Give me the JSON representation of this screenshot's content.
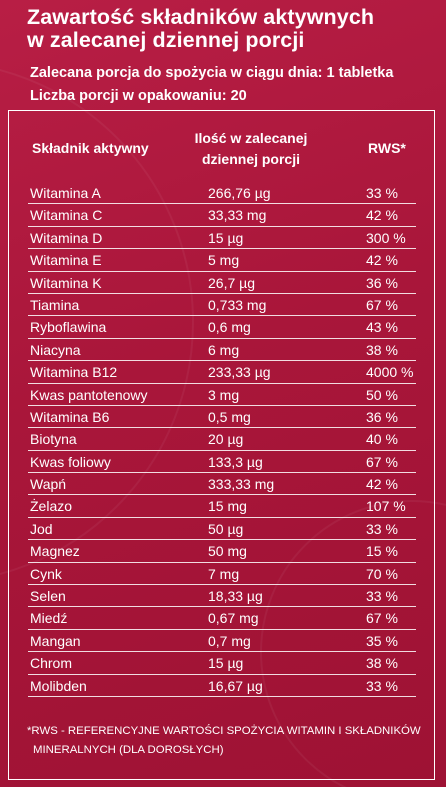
{
  "title_line1": "Zawartość składników aktywnych",
  "title_line2": "w zalecanej dziennej porcji",
  "serving": "Zalecana porcja do spożycia w ciągu dnia: 1 tabletka",
  "servings_per_pack": "Liczba porcji w opakowaniu: 20",
  "columns": {
    "ingredient": "Składnik aktywny",
    "amount_line1": "Ilość w zalecanej",
    "amount_line2": "dziennej porcji",
    "rws": "RWS*"
  },
  "rows": [
    {
      "name": "Witamina A",
      "amount": "266,76 µg",
      "rws": "33 %"
    },
    {
      "name": "Witamina C",
      "amount": "33,33 mg",
      "rws": "42 %"
    },
    {
      "name": "Witamina D",
      "amount": "15 µg",
      "rws": "300 %"
    },
    {
      "name": "Witamina E",
      "amount": "5 mg",
      "rws": "42 %"
    },
    {
      "name": "Witamina K",
      "amount": "26,7 µg",
      "rws": "36 %"
    },
    {
      "name": "Tiamina",
      "amount": "0,733 mg",
      "rws": "67 %"
    },
    {
      "name": "Ryboflawina",
      "amount": "0,6 mg",
      "rws": "43 %"
    },
    {
      "name": "Niacyna",
      "amount": "6 mg",
      "rws": "38 %"
    },
    {
      "name": "Witamina B12",
      "amount": "233,33 µg",
      "rws": "4000 %"
    },
    {
      "name": "Kwas pantotenowy",
      "amount": "3 mg",
      "rws": "50 %"
    },
    {
      "name": "Witamina B6",
      "amount": "0,5 mg",
      "rws": "36 %"
    },
    {
      "name": "Biotyna",
      "amount": "20 µg",
      "rws": "40 %"
    },
    {
      "name": "Kwas foliowy",
      "amount": "133,3 µg",
      "rws": "67 %"
    },
    {
      "name": "Wapń",
      "amount": "333,33 mg",
      "rws": "42 %"
    },
    {
      "name": "Żelazo",
      "amount": "15 mg",
      "rws": "107 %"
    },
    {
      "name": "Jod",
      "amount": "50 µg",
      "rws": "33 %"
    },
    {
      "name": "Magnez",
      "amount": "50 mg",
      "rws": "15 %"
    },
    {
      "name": "Cynk",
      "amount": "7 mg",
      "rws": "70 %"
    },
    {
      "name": "Selen",
      "amount": "18,33 µg",
      "rws": "33 %"
    },
    {
      "name": "Miedź",
      "amount": "0,67 mg",
      "rws": "67 %"
    },
    {
      "name": "Mangan",
      "amount": "0,7 mg",
      "rws": "35 %"
    },
    {
      "name": "Chrom",
      "amount": "15 µg",
      "rws": "38 %"
    },
    {
      "name": "Molibden",
      "amount": "16,67 µg",
      "rws": "33 %"
    }
  ],
  "footnote_line1": "*RWS - REFERENCYJNE WARTOŚCI SPOŻYCIA WITAMIN I SKŁADNIKÓW",
  "footnote_line2": "MINERALNYCH (DLA DOROSŁYCH)",
  "colors": {
    "background": "#a8173a",
    "text": "#ffffff"
  }
}
